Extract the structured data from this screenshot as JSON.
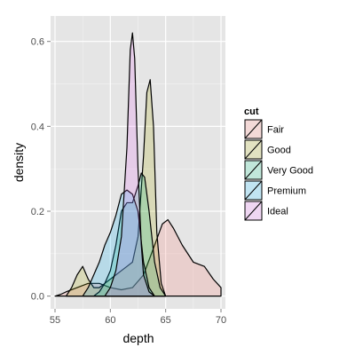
{
  "chart_data": {
    "type": "area",
    "title": "",
    "xlabel": "depth",
    "ylabel": "density",
    "xlim": [
      54.6,
      70.4
    ],
    "ylim": [
      -0.03,
      0.66
    ],
    "x_ticks": [
      55,
      60,
      65,
      70
    ],
    "y_ticks": [
      0.0,
      0.2,
      0.4,
      0.6
    ],
    "y_tick_labels": [
      "0.0",
      "0.2",
      "0.4",
      "0.6"
    ],
    "grid": true,
    "legend_title": "cut",
    "legend_position": "right",
    "series": [
      {
        "name": "Fair",
        "color": "#F8766D",
        "points": [
          [
            55.0,
            0.0
          ],
          [
            55.5,
            0.004
          ],
          [
            56.0,
            0.01
          ],
          [
            57.0,
            0.02
          ],
          [
            58.0,
            0.03
          ],
          [
            59.0,
            0.03
          ],
          [
            60.0,
            0.02
          ],
          [
            61.0,
            0.015
          ],
          [
            62.0,
            0.02
          ],
          [
            63.0,
            0.05
          ],
          [
            64.0,
            0.12
          ],
          [
            64.7,
            0.17
          ],
          [
            65.2,
            0.18
          ],
          [
            65.7,
            0.16
          ],
          [
            66.5,
            0.12
          ],
          [
            67.5,
            0.08
          ],
          [
            68.5,
            0.07
          ],
          [
            69.3,
            0.04
          ],
          [
            70.0,
            0.02
          ]
        ]
      },
      {
        "name": "Good",
        "color": "#A3A500",
        "points": [
          [
            56.0,
            0.0
          ],
          [
            56.5,
            0.02
          ],
          [
            57.0,
            0.05
          ],
          [
            57.5,
            0.07
          ],
          [
            58.0,
            0.04
          ],
          [
            58.5,
            0.02
          ],
          [
            59.0,
            0.02
          ],
          [
            59.5,
            0.03
          ],
          [
            60.0,
            0.04
          ],
          [
            60.5,
            0.05
          ],
          [
            61.0,
            0.06
          ],
          [
            61.5,
            0.07
          ],
          [
            62.0,
            0.08
          ],
          [
            62.5,
            0.14
          ],
          [
            63.0,
            0.33
          ],
          [
            63.3,
            0.48
          ],
          [
            63.6,
            0.51
          ],
          [
            63.9,
            0.4
          ],
          [
            64.2,
            0.15
          ],
          [
            64.6,
            0.03
          ],
          [
            65.0,
            0.0
          ]
        ]
      },
      {
        "name": "Very Good",
        "color": "#00BF7D",
        "points": [
          [
            58.5,
            0.0
          ],
          [
            59.0,
            0.01
          ],
          [
            59.5,
            0.03
          ],
          [
            60.0,
            0.06
          ],
          [
            60.5,
            0.12
          ],
          [
            61.0,
            0.2
          ],
          [
            61.5,
            0.22
          ],
          [
            62.0,
            0.22
          ],
          [
            62.5,
            0.26
          ],
          [
            62.8,
            0.29
          ],
          [
            63.1,
            0.28
          ],
          [
            63.5,
            0.2
          ],
          [
            64.0,
            0.08
          ],
          [
            64.5,
            0.02
          ],
          [
            65.0,
            0.0
          ]
        ]
      },
      {
        "name": "Premium",
        "color": "#00B0F6",
        "points": [
          [
            57.5,
            0.0
          ],
          [
            58.0,
            0.02
          ],
          [
            58.5,
            0.05
          ],
          [
            59.0,
            0.08
          ],
          [
            59.5,
            0.12
          ],
          [
            60.0,
            0.15
          ],
          [
            60.5,
            0.19
          ],
          [
            61.0,
            0.24
          ],
          [
            61.5,
            0.25
          ],
          [
            62.0,
            0.24
          ],
          [
            62.5,
            0.2
          ],
          [
            63.0,
            0.08
          ],
          [
            63.5,
            0.02
          ],
          [
            64.0,
            0.0
          ]
        ]
      },
      {
        "name": "Ideal",
        "color": "#E76BF3",
        "points": [
          [
            59.5,
            0.0
          ],
          [
            60.0,
            0.02
          ],
          [
            60.5,
            0.06
          ],
          [
            61.0,
            0.14
          ],
          [
            61.5,
            0.35
          ],
          [
            61.8,
            0.58
          ],
          [
            62.0,
            0.62
          ],
          [
            62.2,
            0.56
          ],
          [
            62.5,
            0.3
          ],
          [
            62.8,
            0.12
          ],
          [
            63.0,
            0.05
          ],
          [
            63.5,
            0.01
          ],
          [
            64.0,
            0.0
          ]
        ]
      }
    ]
  }
}
